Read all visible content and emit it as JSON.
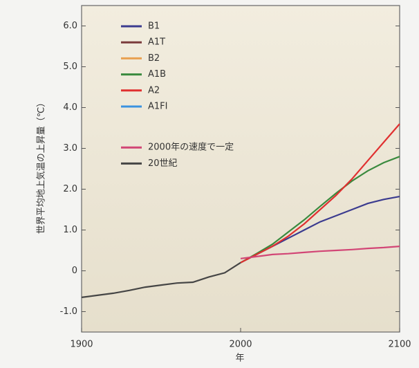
{
  "chart_data": {
    "type": "line",
    "ylabel": "世界平均地上気温の上昇量（℃）",
    "xlabel": "年",
    "x": [
      1900,
      1910,
      1920,
      1930,
      1940,
      1950,
      1960,
      1970,
      1980,
      1990,
      2000,
      2010,
      2020,
      2030,
      2040,
      2050,
      2060,
      2070,
      2080,
      2090,
      2100
    ],
    "series": [
      {
        "name": "B1",
        "color": "#3b3b8f",
        "values": [
          null,
          null,
          null,
          null,
          null,
          null,
          null,
          null,
          null,
          null,
          0.2,
          0.4,
          0.6,
          0.8,
          1.0,
          1.2,
          1.35,
          1.5,
          1.65,
          1.75,
          1.82
        ]
      },
      {
        "name": "A1T",
        "color": "#7a3b3b",
        "values": [
          null,
          null,
          null,
          null,
          null,
          null,
          null,
          null,
          null,
          null,
          null,
          null,
          null,
          null,
          null,
          null,
          null,
          null,
          null,
          null,
          null
        ]
      },
      {
        "name": "B2",
        "color": "#e8a050",
        "values": [
          null,
          null,
          null,
          null,
          null,
          null,
          null,
          null,
          null,
          null,
          null,
          null,
          null,
          null,
          null,
          null,
          null,
          null,
          null,
          null,
          null
        ]
      },
      {
        "name": "A1B",
        "color": "#3a8a3e",
        "values": [
          null,
          null,
          null,
          null,
          null,
          null,
          null,
          null,
          null,
          null,
          0.2,
          0.42,
          0.65,
          0.95,
          1.25,
          1.58,
          1.9,
          2.2,
          2.45,
          2.65,
          2.8
        ]
      },
      {
        "name": "A2",
        "color": "#e03030",
        "values": [
          null,
          null,
          null,
          null,
          null,
          null,
          null,
          null,
          null,
          null,
          0.2,
          0.4,
          0.6,
          0.85,
          1.15,
          1.5,
          1.85,
          2.25,
          2.7,
          3.15,
          3.6
        ]
      },
      {
        "name": "A1FI",
        "color": "#3a92e0",
        "values": [
          null,
          null,
          null,
          null,
          null,
          null,
          null,
          null,
          null,
          null,
          null,
          null,
          null,
          null,
          null,
          null,
          null,
          null,
          null,
          null,
          null
        ]
      },
      {
        "name": "2000年の速度で一定",
        "color": "#d24575",
        "values": [
          null,
          null,
          null,
          null,
          null,
          null,
          null,
          null,
          null,
          null,
          0.3,
          0.35,
          0.4,
          0.42,
          0.45,
          0.48,
          0.5,
          0.52,
          0.55,
          0.57,
          0.6
        ]
      },
      {
        "name": "20世紀",
        "color": "#454545",
        "values": [
          -0.65,
          -0.6,
          -0.55,
          -0.48,
          -0.4,
          -0.35,
          -0.3,
          -0.28,
          -0.15,
          -0.05,
          0.2,
          null,
          null,
          null,
          null,
          null,
          null,
          null,
          null,
          null,
          null
        ]
      }
    ],
    "xlim": [
      1900,
      2100
    ],
    "xticks": [
      1900,
      2000,
      2100
    ],
    "ylim": [
      -1.5,
      6.5
    ],
    "yticks": [
      {
        "value": 6,
        "label": "6.0"
      },
      {
        "value": 5,
        "label": "5.0"
      },
      {
        "value": 4,
        "label": "4.0"
      },
      {
        "value": 3,
        "label": "3.0"
      },
      {
        "value": 2,
        "label": "2.0"
      },
      {
        "value": 1,
        "label": "1.0"
      },
      0,
      {
        "value": -1,
        "label": "-1.0"
      }
    ]
  }
}
